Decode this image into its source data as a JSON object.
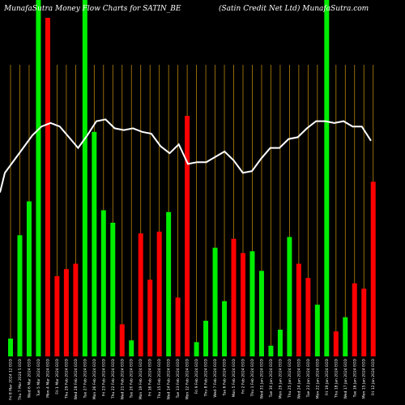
{
  "chart_data": {
    "type": "bar",
    "title_left": "MunafaSutra  Money Flow  Charts for SATIN_BE",
    "title_right": "(Satin  Credit Net Ltd) MunafaSutra.com",
    "colors": {
      "background": "#000000",
      "up": "#00ee00",
      "down": "#ff0000",
      "grid": "#b8860b",
      "line": "#ffffff"
    },
    "ylim": [
      0,
      100
    ],
    "bars": [
      {
        "label": "Fri 8 Mar 2024 12 EOD",
        "value": 5,
        "dir": "up"
      },
      {
        "label": "Thu 7 Mar 2024 5 EOD",
        "value": 34,
        "dir": "up"
      },
      {
        "label": "Wed 6 Mar 2024 EOD",
        "value": 43.5,
        "dir": "up"
      },
      {
        "label": "Tue 5 Mar 2024 EOD",
        "value": 100,
        "dir": "up"
      },
      {
        "label": "Mon 4 Mar 2024 EOD",
        "value": 95,
        "dir": "down"
      },
      {
        "label": "Fri 1 Mar 2024 EOD",
        "value": 22.5,
        "dir": "down"
      },
      {
        "label": "Thu 29 Feb 2024 EOD",
        "value": 24.5,
        "dir": "down"
      },
      {
        "label": "Wed 28 Feb 2024 EOD",
        "value": 26,
        "dir": "down"
      },
      {
        "label": "Tue 27 Feb 2024 EOD",
        "value": 100,
        "dir": "up"
      },
      {
        "label": "Mon 26 Feb 2024 EOD",
        "value": 63,
        "dir": "up"
      },
      {
        "label": "Fri 23 Feb 2024 EOD",
        "value": 41,
        "dir": "up"
      },
      {
        "label": "Thu 22 Feb 2024 EOD",
        "value": 37.5,
        "dir": "up"
      },
      {
        "label": "Wed 21 Feb 2024 EOD",
        "value": 9,
        "dir": "down"
      },
      {
        "label": "Tue 20 Feb 2024 EOD",
        "value": 4.5,
        "dir": "up"
      },
      {
        "label": "Mon 19 Feb 2024 EOD",
        "value": 34.5,
        "dir": "down"
      },
      {
        "label": "Fri 16 Feb 2024 EOD",
        "value": 21.5,
        "dir": "down"
      },
      {
        "label": "Thu 15 Feb 2024 EOD",
        "value": 35,
        "dir": "down"
      },
      {
        "label": "Wed 14 Feb 2024 EOD",
        "value": 40.5,
        "dir": "up"
      },
      {
        "label": "Tue 13 Feb 2024 EOD",
        "value": 16.5,
        "dir": "down"
      },
      {
        "label": "Mon 12 Feb 2024 EOD",
        "value": 67.5,
        "dir": "down"
      },
      {
        "label": "Fri 9 Feb 2024 EOD",
        "value": 4,
        "dir": "up"
      },
      {
        "label": "Thu 8 Feb 2024 EOD",
        "value": 10,
        "dir": "up"
      },
      {
        "label": "Wed 7 Feb 2024 EOD",
        "value": 30.5,
        "dir": "up"
      },
      {
        "label": "Tue 6 Feb 2024 EOD",
        "value": 15.5,
        "dir": "up"
      },
      {
        "label": "Mon 5 Feb 2024 EOD",
        "value": 33,
        "dir": "down"
      },
      {
        "label": "Fri 2 Feb 2024 EOD",
        "value": 29,
        "dir": "down"
      },
      {
        "label": "Thu 1 Feb 2024 EOD",
        "value": 29.5,
        "dir": "up"
      },
      {
        "label": "Wed 31 Jan 2024 EOD",
        "value": 24,
        "dir": "up"
      },
      {
        "label": "Tue 30 Jan 2024 EOD",
        "value": 3,
        "dir": "up"
      },
      {
        "label": "Mon 29 Jan 2024 EOD",
        "value": 7.5,
        "dir": "up"
      },
      {
        "label": "Thu 25 Jan 2024 EOD",
        "value": 33.5,
        "dir": "up"
      },
      {
        "label": "Wed 24 Jan 2024 EOD",
        "value": 26,
        "dir": "down"
      },
      {
        "label": "Tue 23 Jan 2024 EOD",
        "value": 22,
        "dir": "down"
      },
      {
        "label": "Mon 22 Jan 2024 EOD",
        "value": 14.5,
        "dir": "up"
      },
      {
        "label": "Fri 19 Jan 2024 EOD",
        "value": 100,
        "dir": "up"
      },
      {
        "label": "Thu 18 Jan 2024 EOD",
        "value": 7,
        "dir": "down"
      },
      {
        "label": "Wed 17 Jan 2024 EOD",
        "value": 11,
        "dir": "up"
      },
      {
        "label": "Tue 16 Jan 2024 EOD",
        "value": 20.5,
        "dir": "down"
      },
      {
        "label": "Mon 15 Jan 2024 EOD",
        "value": 19,
        "dir": "down"
      },
      {
        "label": "Fri 12 Jan 2024 EOD",
        "value": 49,
        "dir": "down"
      }
    ],
    "line": [
      46,
      51.5,
      55,
      58.5,
      62,
      64.5,
      65.5,
      64.5,
      61.5,
      58.5,
      62,
      66,
      66.5,
      64,
      63.5,
      64,
      63,
      62.5,
      59,
      57,
      59.5,
      54,
      54.5,
      54.5,
      56,
      57.5,
      55,
      51.5,
      52,
      55.5,
      58.5,
      58.5,
      61,
      61.5,
      64,
      66,
      66,
      65.5,
      66,
      64.5,
      64.5,
      60.5
    ]
  }
}
